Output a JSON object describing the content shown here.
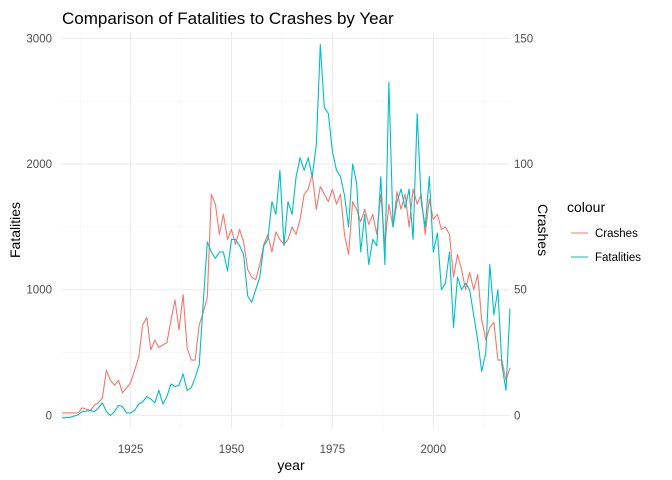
{
  "chart_data": {
    "type": "line",
    "title": "Comparison of Fatalities to Crashes by Year",
    "xlabel": "year",
    "ylabel_left": "Fatalities",
    "ylabel_right": "Crashes",
    "xlim": [
      1908,
      2019
    ],
    "ylim_left": [
      -100,
      3050
    ],
    "ylim_right": [
      -5,
      152.5
    ],
    "x_ticks": [
      1925,
      1950,
      1975,
      2000
    ],
    "y_left_ticks": [
      0,
      1000,
      2000,
      3000
    ],
    "y_right_ticks": [
      0,
      50,
      100,
      150
    ],
    "grid": true,
    "legend": {
      "title": "colour",
      "position": "right"
    },
    "series": [
      {
        "name": "Crashes",
        "color": "#F8766D",
        "axis": "right",
        "x": [
          1908,
          1910,
          1912,
          1913,
          1915,
          1916,
          1917,
          1918,
          1919,
          1920,
          1921,
          1922,
          1923,
          1924,
          1925,
          1926,
          1927,
          1928,
          1929,
          1930,
          1931,
          1932,
          1933,
          1934,
          1935,
          1936,
          1937,
          1938,
          1939,
          1940,
          1941,
          1942,
          1943,
          1944,
          1945,
          1946,
          1947,
          1948,
          1949,
          1950,
          1951,
          1952,
          1953,
          1954,
          1955,
          1956,
          1957,
          1958,
          1959,
          1960,
          1961,
          1962,
          1963,
          1964,
          1965,
          1966,
          1967,
          1968,
          1969,
          1970,
          1971,
          1972,
          1973,
          1974,
          1975,
          1976,
          1977,
          1978,
          1979,
          1980,
          1981,
          1982,
          1983,
          1984,
          1985,
          1986,
          1987,
          1988,
          1989,
          1990,
          1991,
          1992,
          1993,
          1994,
          1995,
          1996,
          1997,
          1998,
          1999,
          2000,
          2001,
          2002,
          2003,
          2004,
          2005,
          2006,
          2007,
          2008,
          2009,
          2010,
          2011,
          2012,
          2013,
          2014,
          2015,
          2016,
          2017,
          2018,
          2019
        ],
        "values": [
          1,
          1,
          1,
          3,
          2,
          4,
          5,
          7,
          18,
          14,
          12,
          14,
          9,
          11,
          13,
          18,
          23,
          36,
          39,
          26,
          30,
          27,
          28,
          29,
          38,
          46,
          34,
          48,
          27,
          22,
          22,
          36,
          41,
          47,
          88,
          84,
          72,
          80,
          70,
          74,
          68,
          74,
          69,
          58,
          55,
          54,
          60,
          68,
          72,
          65,
          73,
          70,
          68,
          70,
          75,
          72,
          78,
          88,
          90,
          96,
          82,
          91,
          88,
          85,
          90,
          84,
          88,
          72,
          64,
          85,
          82,
          77,
          82,
          76,
          80,
          72,
          88,
          68,
          84,
          75,
          89,
          82,
          88,
          75,
          90,
          84,
          88,
          72,
          86,
          78,
          80,
          74,
          75,
          72,
          55,
          64,
          58,
          50,
          57,
          50,
          56,
          38,
          30,
          35,
          37,
          22,
          22,
          14,
          19
        ]
      },
      {
        "name": "Fatalities",
        "color": "#00BFC4",
        "axis": "left",
        "x": [
          1908,
          1910,
          1912,
          1913,
          1915,
          1916,
          1917,
          1918,
          1919,
          1920,
          1921,
          1922,
          1923,
          1924,
          1925,
          1926,
          1927,
          1928,
          1929,
          1930,
          1931,
          1932,
          1933,
          1934,
          1935,
          1936,
          1937,
          1938,
          1939,
          1940,
          1941,
          1942,
          1943,
          1944,
          1945,
          1946,
          1947,
          1948,
          1949,
          1950,
          1951,
          1952,
          1953,
          1954,
          1955,
          1956,
          1957,
          1958,
          1959,
          1960,
          1961,
          1962,
          1963,
          1964,
          1965,
          1966,
          1967,
          1968,
          1969,
          1970,
          1971,
          1972,
          1973,
          1974,
          1975,
          1976,
          1977,
          1978,
          1979,
          1980,
          1981,
          1982,
          1983,
          1984,
          1985,
          1986,
          1987,
          1988,
          1989,
          1990,
          1991,
          1992,
          1993,
          1994,
          1995,
          1996,
          1997,
          1998,
          1999,
          2000,
          2001,
          2002,
          2003,
          2004,
          2005,
          2006,
          2007,
          2008,
          2009,
          2010,
          2011,
          2012,
          2013,
          2014,
          2015,
          2016,
          2017,
          2018,
          2019
        ],
        "values": [
          -20,
          -15,
          5,
          30,
          40,
          30,
          60,
          100,
          30,
          0,
          30,
          80,
          70,
          20,
          20,
          40,
          90,
          110,
          150,
          130,
          100,
          200,
          90,
          150,
          250,
          230,
          240,
          330,
          200,
          220,
          300,
          400,
          900,
          1380,
          1300,
          1250,
          1300,
          1300,
          1150,
          1400,
          1400,
          1350,
          1280,
          950,
          900,
          1000,
          1100,
          1350,
          1400,
          1700,
          1600,
          1950,
          1350,
          1700,
          1600,
          1900,
          2050,
          1950,
          2050,
          1900,
          2150,
          2950,
          2450,
          2400,
          2100,
          1950,
          1900,
          1750,
          1500,
          2000,
          1850,
          1300,
          1600,
          1200,
          1400,
          1350,
          1900,
          1200,
          2650,
          1500,
          1700,
          1800,
          1650,
          1800,
          1400,
          2400,
          1700,
          1500,
          1900,
          1300,
          1450,
          1000,
          1050,
          1300,
          700,
          1100,
          1000,
          1050,
          1000,
          800,
          600,
          350,
          500,
          1200,
          800,
          1000,
          400,
          200,
          850
        ]
      }
    ]
  }
}
